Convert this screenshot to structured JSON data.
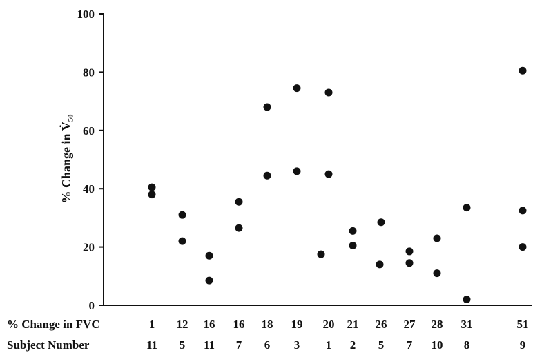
{
  "chart_data": {
    "type": "scatter",
    "ylabel": "% Change in V̇₅₀",
    "ylim": [
      0,
      100
    ],
    "yticks": [
      "0",
      "20",
      "40",
      "60",
      "80",
      "100"
    ],
    "grid": false,
    "rows": [
      {
        "title": "% Change in FVC",
        "values": [
          "1",
          "12",
          "16",
          "16",
          "18",
          "19",
          "20",
          "21",
          "26",
          "27",
          "28",
          "31",
          "51"
        ]
      },
      {
        "title": "Subject Number",
        "values": [
          "11",
          "5",
          "11",
          "7",
          "6",
          "3",
          "1",
          "2",
          "5",
          "7",
          "10",
          "8",
          "9"
        ]
      }
    ],
    "series": [
      {
        "points": [
          {
            "x": "1",
            "y": 40.5
          },
          {
            "x": "1",
            "y": 38
          },
          {
            "x": "12",
            "y": 31
          },
          {
            "x": "12",
            "y": 22
          },
          {
            "x": "16",
            "y": 17
          },
          {
            "x": "16",
            "y": 8.5
          },
          {
            "x": "16",
            "y": 35.5
          },
          {
            "x": "16",
            "y": 26.5
          },
          {
            "x": "18",
            "y": 68
          },
          {
            "x": "18",
            "y": 44.5
          },
          {
            "x": "19",
            "y": 74.5
          },
          {
            "x": "19",
            "y": 46
          },
          {
            "x": "20",
            "y": 73
          },
          {
            "x": "20",
            "y": 45
          },
          {
            "x": "20",
            "y": 17.5
          },
          {
            "x": "21",
            "y": 25.5
          },
          {
            "x": "21",
            "y": 20.5
          },
          {
            "x": "26",
            "y": 28.5
          },
          {
            "x": "26",
            "y": 14
          },
          {
            "x": "27",
            "y": 18.5
          },
          {
            "x": "27",
            "y": 14.5
          },
          {
            "x": "28",
            "y": 23
          },
          {
            "x": "28",
            "y": 11
          },
          {
            "x": "31",
            "y": 33.5
          },
          {
            "x": "31",
            "y": 2
          },
          {
            "x": "51",
            "y": 80.5
          },
          {
            "x": "51",
            "y": 32.5
          },
          {
            "x": "51",
            "y": 20
          }
        ]
      }
    ]
  }
}
